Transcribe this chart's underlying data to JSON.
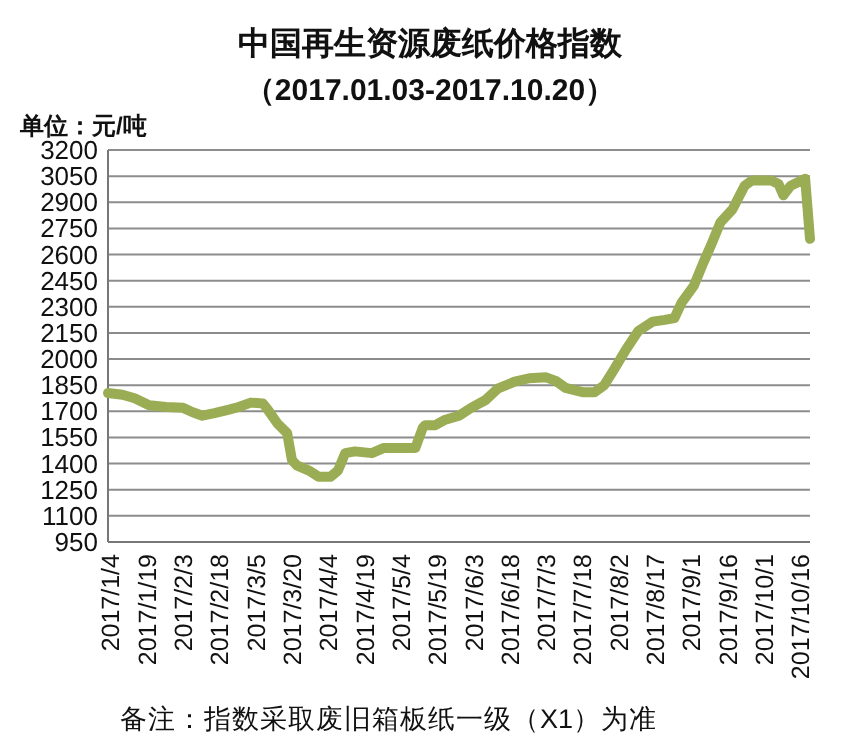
{
  "chart_data": {
    "type": "line",
    "title": "中国再生资源废纸价格指数",
    "subtitle": "（2017.01.03-2017.10.20）",
    "ylabel": "单位：元/吨",
    "annotations": [
      "备注：指数采取废旧箱板纸一级（X1）为准"
    ],
    "x": [
      "2017-01-03",
      "2017-01-09",
      "2017-01-14",
      "2017-01-20",
      "2017-01-27",
      "2017-02-03",
      "2017-02-07",
      "2017-02-11",
      "2017-02-16",
      "2017-02-22",
      "2017-02-26",
      "2017-03-03",
      "2017-03-08",
      "2017-03-10",
      "2017-03-14",
      "2017-03-18",
      "2017-03-20",
      "2017-03-22",
      "2017-03-27",
      "2017-03-31",
      "2017-04-05",
      "2017-04-08",
      "2017-04-11",
      "2017-04-15",
      "2017-04-22",
      "2017-04-27",
      "2017-05-10",
      "2017-05-13",
      "2017-05-14",
      "2017-05-18",
      "2017-05-22",
      "2017-05-28",
      "2017-06-02",
      "2017-06-08",
      "2017-06-13",
      "2017-06-20",
      "2017-06-26",
      "2017-07-03",
      "2017-07-07",
      "2017-07-11",
      "2017-07-18",
      "2017-07-23",
      "2017-07-27",
      "2017-07-31",
      "2017-08-05",
      "2017-08-10",
      "2017-08-16",
      "2017-08-21",
      "2017-08-25",
      "2017-08-28",
      "2017-09-02",
      "2017-09-06",
      "2017-09-09",
      "2017-09-13",
      "2017-09-18",
      "2017-09-23",
      "2017-09-26",
      "2017-10-04",
      "2017-10-07",
      "2017-10-09",
      "2017-10-12",
      "2017-10-18",
      "2017-10-20"
    ],
    "series": [
      {
        "color": "#9aad55",
        "values": [
          1805,
          1795,
          1775,
          1735,
          1725,
          1720,
          1695,
          1675,
          1690,
          1710,
          1725,
          1750,
          1745,
          1710,
          1630,
          1575,
          1420,
          1390,
          1360,
          1325,
          1325,
          1360,
          1460,
          1470,
          1460,
          1490,
          1490,
          1605,
          1620,
          1620,
          1650,
          1675,
          1720,
          1765,
          1830,
          1870,
          1890,
          1895,
          1875,
          1835,
          1810,
          1810,
          1850,
          1940,
          2055,
          2160,
          2215,
          2225,
          2235,
          2325,
          2420,
          2555,
          2650,
          2785,
          2860,
          2995,
          3025,
          3025,
          3005,
          2940,
          2995,
          3035,
          2690
        ]
      }
    ],
    "xlim": [
      "2017-01-03",
      "2017-10-20"
    ],
    "xticks": [
      {
        "value": "2017-01-04",
        "label": "2017/1/4"
      },
      {
        "value": "2017-01-19",
        "label": "2017/1/19"
      },
      {
        "value": "2017-02-03",
        "label": "2017/2/3"
      },
      {
        "value": "2017-02-18",
        "label": "2017/2/18"
      },
      {
        "value": "2017-03-05",
        "label": "2017/3/5"
      },
      {
        "value": "2017-03-20",
        "label": "2017/3/20"
      },
      {
        "value": "2017-04-04",
        "label": "2017/4/4"
      },
      {
        "value": "2017-04-19",
        "label": "2017/4/19"
      },
      {
        "value": "2017-05-04",
        "label": "2017/5/4"
      },
      {
        "value": "2017-05-19",
        "label": "2017/5/19"
      },
      {
        "value": "2017-06-03",
        "label": "2017/6/3"
      },
      {
        "value": "2017-06-18",
        "label": "2017/6/18"
      },
      {
        "value": "2017-07-03",
        "label": "2017/7/3"
      },
      {
        "value": "2017-07-18",
        "label": "2017/7/18"
      },
      {
        "value": "2017-08-02",
        "label": "2017/8/2"
      },
      {
        "value": "2017-08-17",
        "label": "2017/8/17"
      },
      {
        "value": "2017-09-01",
        "label": "2017/9/1"
      },
      {
        "value": "2017-09-16",
        "label": "2017/9/16"
      },
      {
        "value": "2017-10-01",
        "label": "2017/10/1"
      },
      {
        "value": "2017-10-16",
        "label": "2017/10/16"
      }
    ],
    "ylim": [
      950,
      3200
    ],
    "yticks": [
      950,
      1100,
      1250,
      1400,
      1550,
      1700,
      1850,
      2000,
      2150,
      2300,
      2450,
      2600,
      2750,
      2900,
      3050,
      3200
    ],
    "grid": "y",
    "marker": "none",
    "line_style": "solid"
  }
}
